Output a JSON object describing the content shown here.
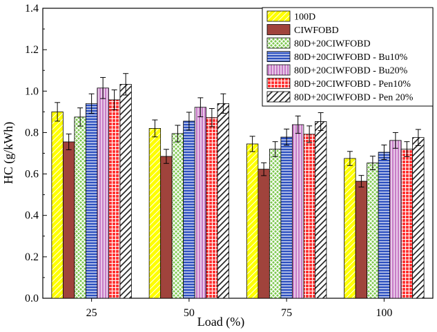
{
  "chart_data": {
    "type": "bar",
    "title": "",
    "xlabel": "Load (%)",
    "ylabel": "HC (g/kWh)",
    "ylim": [
      0.0,
      1.4
    ],
    "yticks": [
      "0.0",
      "0.2",
      "0.4",
      "0.6",
      "0.8",
      "1.0",
      "1.2",
      "1.4"
    ],
    "categories": [
      "25",
      "50",
      "75",
      "100"
    ],
    "legend_position": "top-right",
    "series": [
      {
        "name": "100D",
        "color": "#ffff00",
        "pattern": "diag",
        "values": [
          0.9,
          0.82,
          0.745,
          0.675
        ],
        "errors": [
          0.045,
          0.041,
          0.037,
          0.034
        ]
      },
      {
        "name": "CIWFOBD",
        "color": "#a0433c",
        "pattern": "solid",
        "values": [
          0.755,
          0.685,
          0.623,
          0.565
        ],
        "errors": [
          0.038,
          0.034,
          0.031,
          0.028
        ]
      },
      {
        "name": "80D+20CIWFOBD",
        "color": "#7ec850",
        "pattern": "crosshatch",
        "values": [
          0.875,
          0.795,
          0.72,
          0.653
        ],
        "errors": [
          0.044,
          0.04,
          0.036,
          0.033
        ]
      },
      {
        "name": "80D+20CIWFOBD - Bu10%",
        "color": "#2b4fbf",
        "pattern": "hlines",
        "values": [
          0.94,
          0.855,
          0.778,
          0.705
        ],
        "errors": [
          0.047,
          0.043,
          0.039,
          0.035
        ]
      },
      {
        "name": "80D+20CIWFOBD - Bu20%",
        "color": "#c77cc7",
        "pattern": "vlines",
        "values": [
          1.015,
          0.922,
          0.838,
          0.762
        ],
        "errors": [
          0.051,
          0.046,
          0.042,
          0.038
        ]
      },
      {
        "name": "80D+20CIWFOBD - Pen10%",
        "color": "#ff3030",
        "pattern": "grid",
        "values": [
          0.958,
          0.872,
          0.792,
          0.72
        ],
        "errors": [
          0.048,
          0.044,
          0.04,
          0.036
        ]
      },
      {
        "name": "80D+20CIWFOBD - Pen 20%",
        "color": "#222222",
        "pattern": "diag-dark",
        "values": [
          1.033,
          0.94,
          0.853,
          0.776
        ],
        "errors": [
          0.052,
          0.047,
          0.043,
          0.039
        ]
      }
    ]
  }
}
